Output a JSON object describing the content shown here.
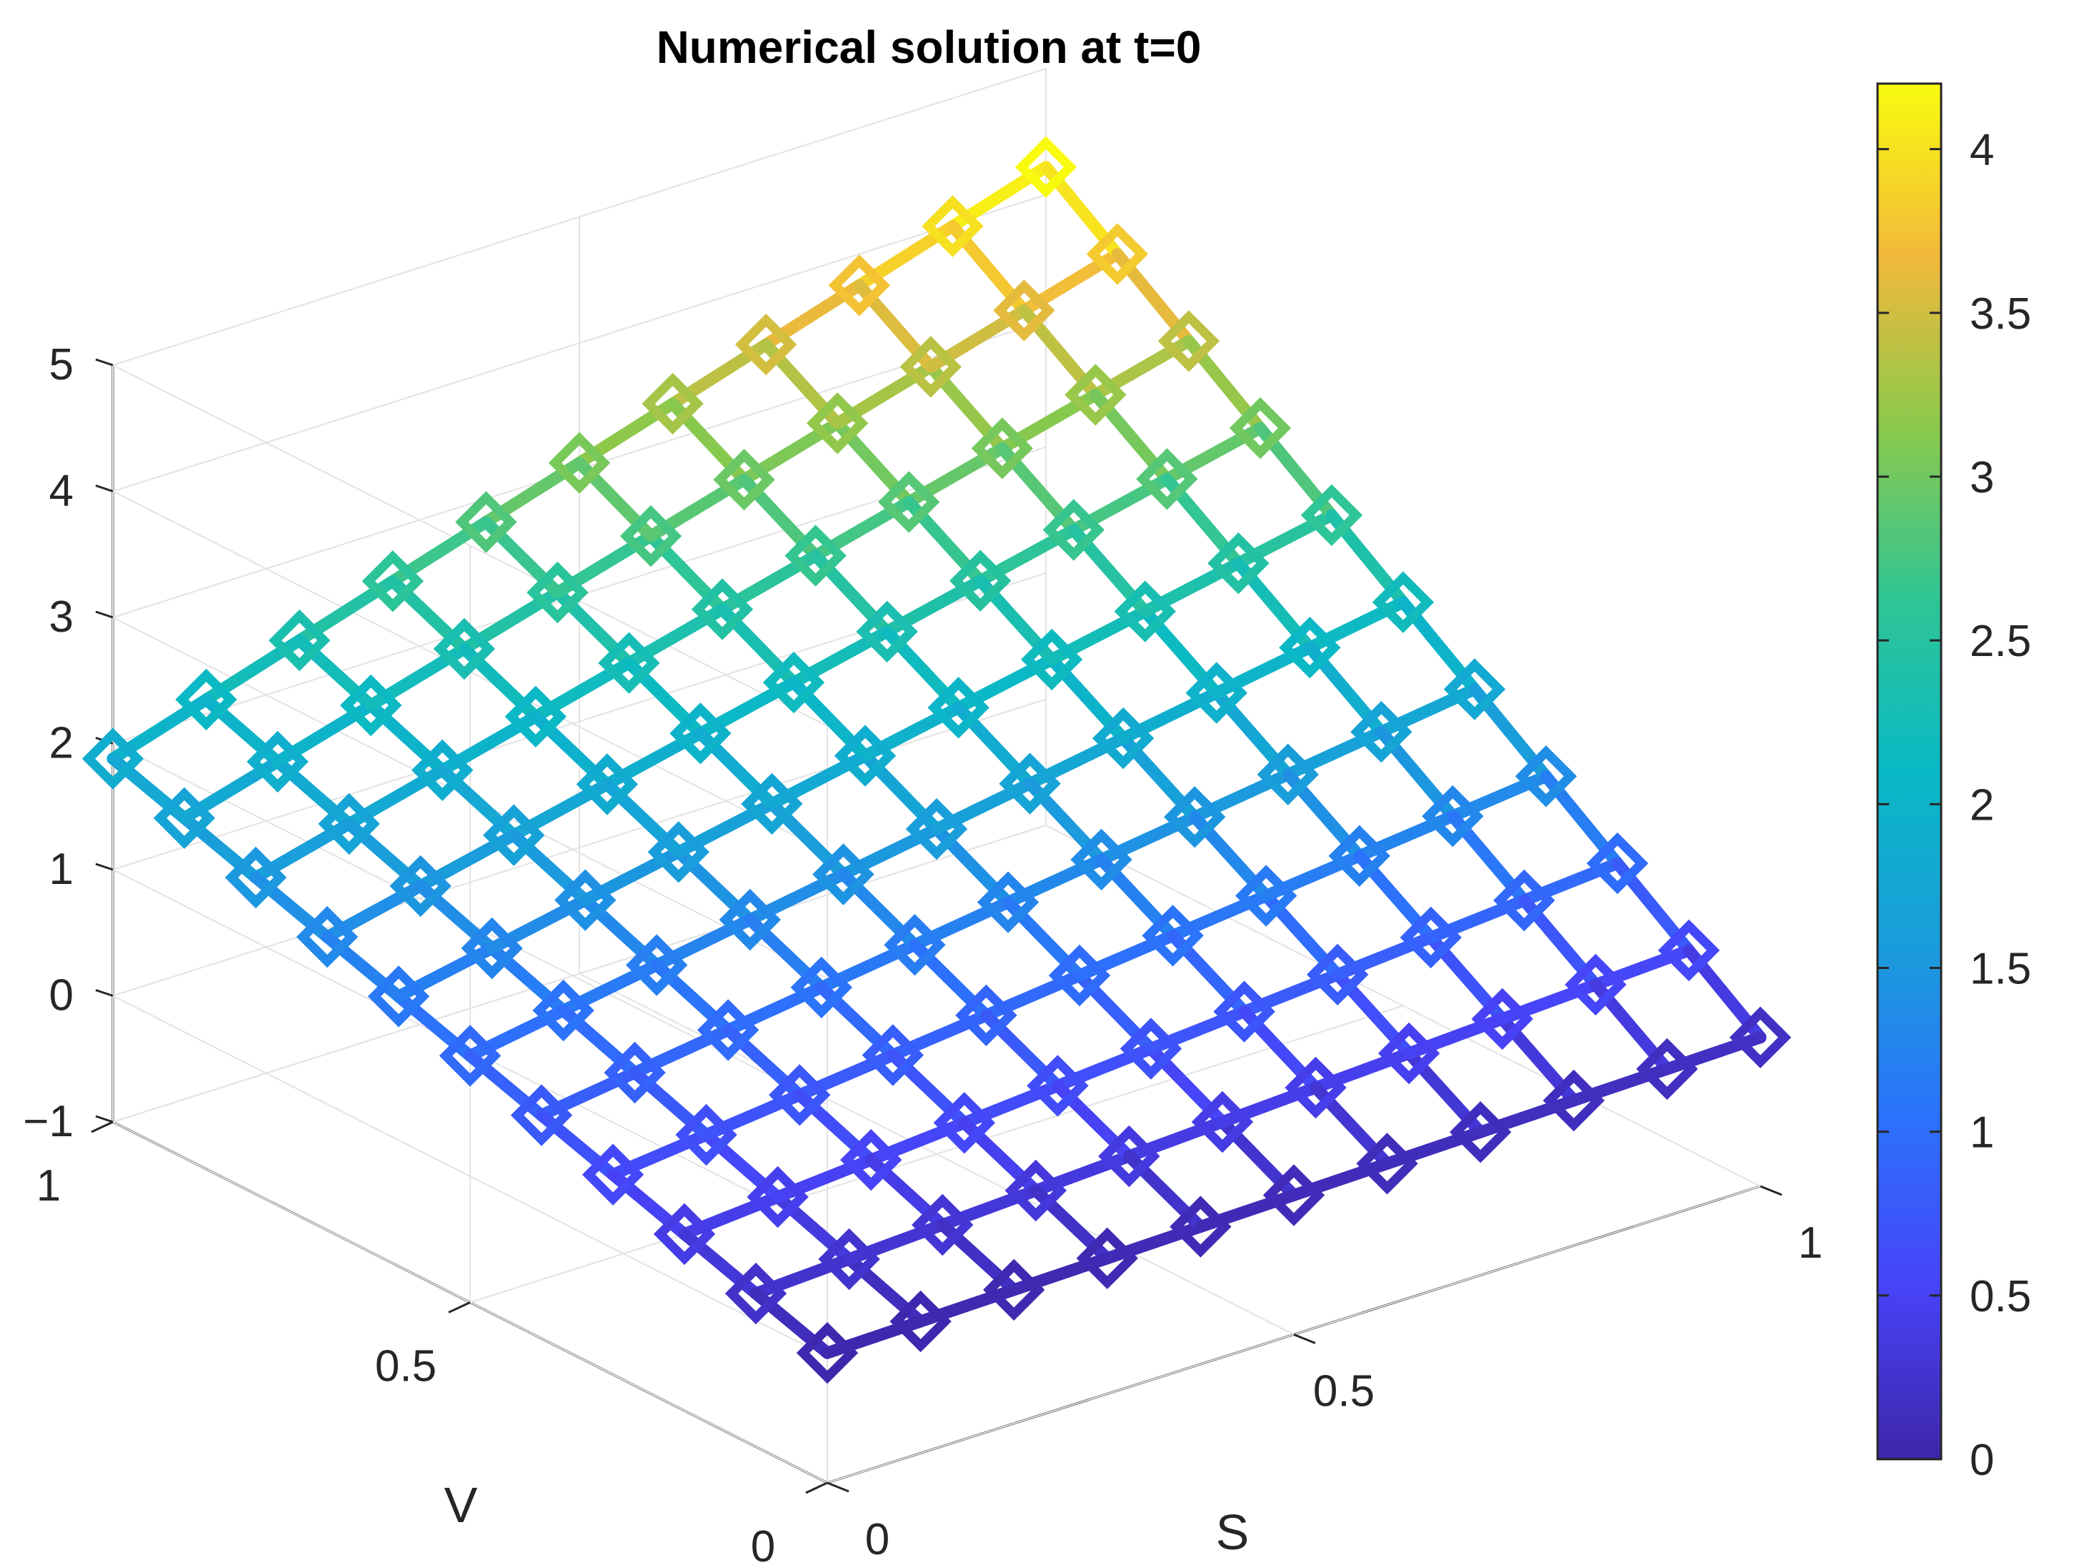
{
  "chart_data": {
    "type": "surface3d",
    "title": "Numerical solution at t=0",
    "xlabel": "S",
    "ylabel": "V",
    "zlabel": "",
    "xlim": [
      0,
      1
    ],
    "ylim": [
      0,
      1
    ],
    "zlim": [
      -1,
      5
    ],
    "x_ticks": [
      "0",
      "0.5",
      "1"
    ],
    "y_ticks": [
      "0",
      "0.5",
      "1"
    ],
    "z_ticks": [
      "−1",
      "0",
      "1",
      "2",
      "3",
      "4",
      "5"
    ],
    "z_tick_values": [
      -1,
      0,
      1,
      2,
      3,
      4,
      5
    ],
    "grid": true,
    "marker": "diamond",
    "colormap": "parula",
    "colorbar": {
      "range": [
        0,
        4.2
      ],
      "ticks": [
        "0",
        "0.5",
        "1",
        "1.5",
        "2",
        "2.5",
        "3",
        "3.5",
        "4"
      ],
      "tick_values": [
        0,
        0.5,
        1,
        1.5,
        2,
        2.5,
        3,
        3.5,
        4
      ]
    },
    "grid_s": [
      0,
      0.1,
      0.2,
      0.3,
      0.4,
      0.5,
      0.6,
      0.7,
      0.8,
      0.9,
      1.0
    ],
    "grid_v": [
      0,
      0.1,
      0.2,
      0.3,
      0.4,
      0.5,
      0.6,
      0.7,
      0.8,
      0.9,
      1.0
    ],
    "surface_values_note_formula_corner_values": {
      "S0_V0": 0.03,
      "S1_V0": 0.18,
      "S0_V1": 1.88,
      "S1_V1": 4.22
    }
  }
}
